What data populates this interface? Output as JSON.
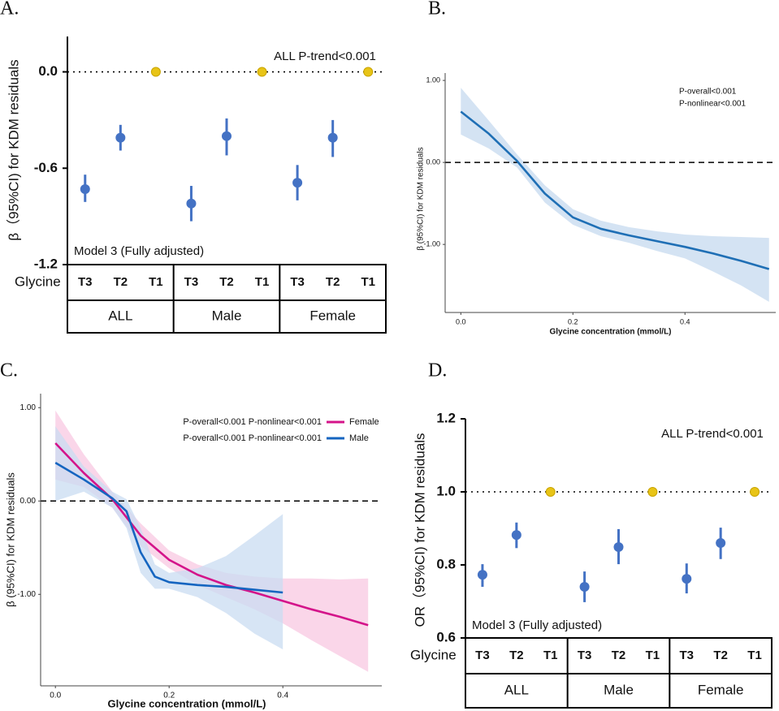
{
  "chart_data": [
    {
      "type": "pointrange",
      "panel_label": "A.",
      "y_label": "β（95%CI) for KDM residuals",
      "annotation": "ALL P-trend<0.001",
      "model_note": "Model 3 (Fully adjusted)",
      "row_label": "Glycine",
      "categories": [
        "T3",
        "T2",
        "T1",
        "T3",
        "T2",
        "T1",
        "T3",
        "T2",
        "T1"
      ],
      "groups": [
        "ALL",
        "Male",
        "Female"
      ],
      "values": [
        -0.73,
        -0.41,
        0,
        -0.82,
        -0.4,
        0,
        -0.69,
        -0.41,
        0
      ],
      "lower": [
        -0.81,
        -0.49,
        null,
        -0.93,
        -0.52,
        null,
        -0.8,
        -0.53,
        null
      ],
      "upper": [
        -0.64,
        -0.33,
        null,
        -0.71,
        -0.29,
        null,
        -0.58,
        -0.3,
        null
      ],
      "color": "#4472c4",
      "ref_color": "#e8c417",
      "ref_line": 0,
      "ref_style": "dotted",
      "ylim": [
        -1.2,
        0.22
      ],
      "yticks": [
        {
          "value": 0,
          "label": "0.0"
        },
        -0.6,
        -1.2
      ]
    },
    {
      "type": "line",
      "panel_label": "B.",
      "x_label": "Glycine concentration (mmol/L)",
      "y_label": "β (95%CI) for KDM residuals",
      "annotations": [
        "P-overall<0.001",
        "P-nonlinear<0.001"
      ],
      "ref_line": 0,
      "ref_style": "dashed",
      "xlim": [
        -0.028,
        0.562
      ],
      "ylim": [
        -1.83,
        1.09
      ],
      "xticks": [
        {
          "value": 0,
          "label": "0.0"
        },
        0.2,
        0.4
      ],
      "yticks": [
        {
          "value": 1,
          "label": "1.00"
        },
        {
          "value": 0,
          "label": "0.00"
        },
        {
          "value": -1,
          "label": "-1.00"
        }
      ],
      "series": [
        {
          "color": "#1f6fb5",
          "band_color": "#c6d9ef",
          "x": [
            0,
            0.05,
            0.1,
            0.15,
            0.2,
            0.25,
            0.3,
            0.35,
            0.4,
            0.45,
            0.5,
            0.55
          ],
          "values": [
            0.62,
            0.35,
            0.02,
            -0.38,
            -0.67,
            -0.81,
            -0.89,
            -0.96,
            -1.03,
            -1.11,
            -1.2,
            -1.3
          ],
          "lower": [
            0.34,
            0.17,
            -0.06,
            -0.49,
            -0.76,
            -0.9,
            -0.98,
            -1.08,
            -1.17,
            -1.33,
            -1.5,
            -1.7
          ],
          "upper": [
            0.91,
            0.51,
            0.1,
            -0.28,
            -0.57,
            -0.71,
            -0.79,
            -0.84,
            -0.88,
            -0.9,
            -0.91,
            -0.92
          ]
        }
      ]
    },
    {
      "type": "line",
      "panel_label": "C.",
      "x_label": "Glycine concentration (mmol/L)",
      "y_label": "β (95%CI) for KDM residuals",
      "ref_line": 0,
      "ref_style": "dashed",
      "legend": "top-right",
      "xlim": [
        -0.026,
        0.574
      ],
      "ylim": [
        -1.98,
        1.15
      ],
      "xticks": [
        {
          "value": 0,
          "label": "0.0"
        },
        0.2,
        0.4
      ],
      "yticks": [
        {
          "value": 1,
          "label": "1.00"
        },
        {
          "value": 0,
          "label": "0.00"
        },
        {
          "value": -1,
          "label": "-1.00"
        }
      ],
      "series": [
        {
          "name": "Female",
          "note": "P-overall<0.001 P-nonlinear<0.001",
          "color": "#d4148a",
          "band_color": "#f8c8e2",
          "x": [
            0,
            0.05,
            0.1,
            0.15,
            0.2,
            0.25,
            0.3,
            0.35,
            0.4,
            0.45,
            0.5,
            0.55
          ],
          "values": [
            0.62,
            0.3,
            0.02,
            -0.37,
            -0.63,
            -0.79,
            -0.9,
            -0.98,
            -1.07,
            -1.16,
            -1.24,
            -1.33
          ],
          "lower": [
            0.23,
            0.15,
            -0.07,
            -0.48,
            -0.72,
            -0.9,
            -1.03,
            -1.16,
            -1.31,
            -1.49,
            -1.66,
            -1.83
          ],
          "upper": [
            0.97,
            0.5,
            0.1,
            -0.24,
            -0.53,
            -0.68,
            -0.77,
            -0.81,
            -0.83,
            -0.83,
            -0.84,
            -0.83
          ]
        },
        {
          "name": "Male",
          "note": "P-overall<0.001 P-nonlinear<0.001",
          "color": "#1565c0",
          "band_color": "#c9dcf2",
          "x": [
            0,
            0.05,
            0.1,
            0.125,
            0.15,
            0.175,
            0.2,
            0.25,
            0.3,
            0.35,
            0.4
          ],
          "values": [
            0.41,
            0.23,
            0.03,
            -0.11,
            -0.55,
            -0.81,
            -0.87,
            -0.9,
            -0.92,
            -0.95,
            -0.98
          ],
          "lower": [
            0.0,
            0.1,
            -0.07,
            -0.29,
            -0.77,
            -0.94,
            -0.94,
            -1.03,
            -1.2,
            -1.42,
            -1.59
          ],
          "upper": [
            0.8,
            0.37,
            0.1,
            0.02,
            -0.29,
            -0.68,
            -0.77,
            -0.72,
            -0.59,
            -0.37,
            -0.14
          ]
        }
      ]
    },
    {
      "type": "pointrange",
      "panel_label": "D.",
      "y_label": "OR（95%CI) for KDM residuals",
      "annotation": "ALL P-trend<0.001",
      "model_note": "Model 3 (Fully adjusted)",
      "row_label": "Glycine",
      "categories": [
        "T3",
        "T2",
        "T1",
        "T3",
        "T2",
        "T1",
        "T3",
        "T2",
        "T1"
      ],
      "groups": [
        "ALL",
        "Male",
        "Female"
      ],
      "values": [
        0.773,
        0.882,
        1,
        0.74,
        0.849,
        1,
        0.762,
        0.86,
        1
      ],
      "lower": [
        0.74,
        0.846,
        null,
        0.698,
        0.802,
        null,
        0.722,
        0.816,
        null
      ],
      "upper": [
        0.802,
        0.916,
        null,
        0.782,
        0.898,
        null,
        0.804,
        0.902,
        null
      ],
      "color": "#4472c4",
      "ref_color": "#e8c417",
      "ref_line": 1,
      "ref_style": "dotted",
      "ylim": [
        0.6,
        1.2
      ],
      "yticks": [
        0.6,
        0.8,
        {
          "value": 1,
          "label": "1.0"
        },
        1.2
      ]
    }
  ]
}
